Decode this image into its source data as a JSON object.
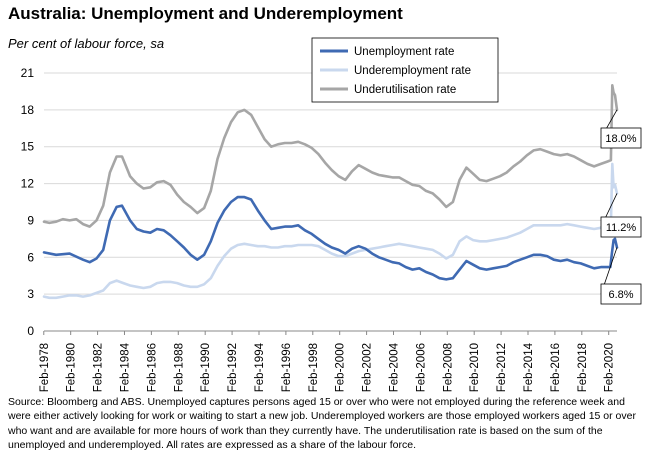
{
  "title": "Australia: Unemployment and Underemployment",
  "subtitle": "Per cent of labour force, sa",
  "source": "Source: Bloomberg and ABS. Unemployed captures persons aged 15 or over who were not employed during the reference week and were either actively looking for work or waiting to start a new job. Underemployed workers are those employed workers aged 15 or over who want and are available for more hours of work than they currently have. The underutilisation rate is based on the sum of the unemployed and underemployed. All rates are expressed as a share of the labour force.",
  "chart_data": {
    "type": "line",
    "x_ticks": [
      "Feb-1978",
      "Feb-1980",
      "Feb-1982",
      "Feb-1984",
      "Feb-1986",
      "Feb-1988",
      "Feb-1990",
      "Feb-1992",
      "Feb-1994",
      "Feb-1996",
      "Feb-1998",
      "Feb-2000",
      "Feb-2002",
      "Feb-2004",
      "Feb-2006",
      "Feb-2008",
      "Feb-2010",
      "Feb-2012",
      "Feb-2014",
      "Feb-2016",
      "Feb-2018",
      "Feb-2020"
    ],
    "xlim": [
      1978.1,
      2020.7
    ],
    "ylim": [
      0,
      21
    ],
    "y_ticks": [
      0,
      3,
      6,
      9,
      12,
      15,
      18,
      21
    ],
    "grid": true,
    "legend_position": "top-center",
    "series": [
      {
        "name": "Unemployment rate",
        "color": "#3f6ab3",
        "end_label": "6.8%",
        "points": [
          [
            1978.1,
            6.4
          ],
          [
            1979,
            6.2
          ],
          [
            1980,
            6.3
          ],
          [
            1981,
            5.8
          ],
          [
            1981.5,
            5.6
          ],
          [
            1982,
            5.9
          ],
          [
            1982.5,
            6.6
          ],
          [
            1983,
            9.0
          ],
          [
            1983.5,
            10.1
          ],
          [
            1983.9,
            10.2
          ],
          [
            1984.5,
            9.0
          ],
          [
            1985,
            8.3
          ],
          [
            1985.5,
            8.1
          ],
          [
            1986,
            8.0
          ],
          [
            1986.5,
            8.3
          ],
          [
            1987,
            8.2
          ],
          [
            1987.5,
            7.8
          ],
          [
            1988,
            7.3
          ],
          [
            1988.5,
            6.8
          ],
          [
            1989,
            6.2
          ],
          [
            1989.5,
            5.8
          ],
          [
            1990,
            6.2
          ],
          [
            1990.5,
            7.3
          ],
          [
            1991,
            8.8
          ],
          [
            1991.5,
            9.8
          ],
          [
            1992,
            10.5
          ],
          [
            1992.5,
            10.9
          ],
          [
            1993,
            10.9
          ],
          [
            1993.5,
            10.7
          ],
          [
            1994,
            9.8
          ],
          [
            1994.5,
            9.0
          ],
          [
            1995,
            8.3
          ],
          [
            1995.5,
            8.4
          ],
          [
            1996,
            8.5
          ],
          [
            1996.5,
            8.5
          ],
          [
            1997,
            8.6
          ],
          [
            1997.5,
            8.2
          ],
          [
            1998,
            7.9
          ],
          [
            1998.5,
            7.5
          ],
          [
            1999,
            7.1
          ],
          [
            1999.5,
            6.8
          ],
          [
            2000,
            6.6
          ],
          [
            2000.5,
            6.3
          ],
          [
            2001,
            6.7
          ],
          [
            2001.5,
            6.9
          ],
          [
            2002,
            6.7
          ],
          [
            2002.5,
            6.3
          ],
          [
            2003,
            6.0
          ],
          [
            2003.5,
            5.8
          ],
          [
            2004,
            5.6
          ],
          [
            2004.5,
            5.5
          ],
          [
            2005,
            5.2
          ],
          [
            2005.5,
            5.0
          ],
          [
            2006,
            5.1
          ],
          [
            2006.5,
            4.8
          ],
          [
            2007,
            4.6
          ],
          [
            2007.5,
            4.3
          ],
          [
            2008,
            4.2
          ],
          [
            2008.5,
            4.3
          ],
          [
            2009,
            5.0
          ],
          [
            2009.5,
            5.7
          ],
          [
            2010,
            5.4
          ],
          [
            2010.5,
            5.1
          ],
          [
            2011,
            5.0
          ],
          [
            2011.5,
            5.1
          ],
          [
            2012,
            5.2
          ],
          [
            2012.5,
            5.3
          ],
          [
            2013,
            5.6
          ],
          [
            2013.5,
            5.8
          ],
          [
            2014,
            6.0
          ],
          [
            2014.5,
            6.2
          ],
          [
            2015,
            6.2
          ],
          [
            2015.5,
            6.1
          ],
          [
            2016,
            5.8
          ],
          [
            2016.5,
            5.7
          ],
          [
            2017,
            5.8
          ],
          [
            2017.5,
            5.6
          ],
          [
            2018,
            5.5
          ],
          [
            2018.5,
            5.3
          ],
          [
            2019,
            5.1
          ],
          [
            2019.5,
            5.2
          ],
          [
            2020,
            5.2
          ],
          [
            2020.2,
            5.2
          ],
          [
            2020.33,
            6.4
          ],
          [
            2020.45,
            7.4
          ],
          [
            2020.55,
            7.5
          ],
          [
            2020.7,
            6.8
          ]
        ]
      },
      {
        "name": "Underemployment rate",
        "color": "#c9d8ee",
        "end_label": "11.2%",
        "points": [
          [
            1978.1,
            2.8
          ],
          [
            1978.5,
            2.7
          ],
          [
            1979,
            2.7
          ],
          [
            1979.5,
            2.8
          ],
          [
            1980,
            2.9
          ],
          [
            1980.5,
            2.9
          ],
          [
            1981,
            2.8
          ],
          [
            1981.5,
            2.9
          ],
          [
            1982,
            3.1
          ],
          [
            1982.5,
            3.3
          ],
          [
            1983,
            3.9
          ],
          [
            1983.5,
            4.1
          ],
          [
            1984,
            3.9
          ],
          [
            1984.5,
            3.7
          ],
          [
            1985,
            3.6
          ],
          [
            1985.5,
            3.5
          ],
          [
            1986,
            3.6
          ],
          [
            1986.5,
            3.9
          ],
          [
            1987,
            4.0
          ],
          [
            1987.5,
            4.0
          ],
          [
            1988,
            3.9
          ],
          [
            1988.5,
            3.7
          ],
          [
            1989,
            3.6
          ],
          [
            1989.5,
            3.6
          ],
          [
            1990,
            3.8
          ],
          [
            1990.5,
            4.3
          ],
          [
            1991,
            5.3
          ],
          [
            1991.5,
            6.1
          ],
          [
            1992,
            6.7
          ],
          [
            1992.5,
            7.0
          ],
          [
            1993,
            7.1
          ],
          [
            1993.5,
            7.0
          ],
          [
            1994,
            6.9
          ],
          [
            1994.5,
            6.9
          ],
          [
            1995,
            6.8
          ],
          [
            1995.5,
            6.8
          ],
          [
            1996,
            6.9
          ],
          [
            1996.5,
            6.9
          ],
          [
            1997,
            7.0
          ],
          [
            1997.5,
            7.0
          ],
          [
            1998,
            7.0
          ],
          [
            1998.5,
            6.9
          ],
          [
            1999,
            6.6
          ],
          [
            1999.5,
            6.3
          ],
          [
            2000,
            6.1
          ],
          [
            2000.5,
            6.1
          ],
          [
            2001,
            6.3
          ],
          [
            2001.5,
            6.5
          ],
          [
            2002,
            6.6
          ],
          [
            2002.5,
            6.7
          ],
          [
            2003,
            6.8
          ],
          [
            2003.5,
            6.9
          ],
          [
            2004,
            7.0
          ],
          [
            2004.5,
            7.1
          ],
          [
            2005,
            7.0
          ],
          [
            2005.5,
            6.9
          ],
          [
            2006,
            6.8
          ],
          [
            2006.5,
            6.7
          ],
          [
            2007,
            6.6
          ],
          [
            2007.5,
            6.3
          ],
          [
            2008,
            5.9
          ],
          [
            2008.5,
            6.2
          ],
          [
            2009,
            7.3
          ],
          [
            2009.5,
            7.7
          ],
          [
            2010,
            7.4
          ],
          [
            2010.5,
            7.3
          ],
          [
            2011,
            7.3
          ],
          [
            2011.5,
            7.4
          ],
          [
            2012,
            7.5
          ],
          [
            2012.5,
            7.6
          ],
          [
            2013,
            7.8
          ],
          [
            2013.5,
            8.0
          ],
          [
            2014,
            8.3
          ],
          [
            2014.5,
            8.6
          ],
          [
            2015,
            8.6
          ],
          [
            2015.5,
            8.6
          ],
          [
            2016,
            8.6
          ],
          [
            2016.5,
            8.6
          ],
          [
            2017,
            8.7
          ],
          [
            2017.5,
            8.6
          ],
          [
            2018,
            8.5
          ],
          [
            2018.5,
            8.4
          ],
          [
            2019,
            8.3
          ],
          [
            2019.5,
            8.4
          ],
          [
            2020,
            8.6
          ],
          [
            2020.25,
            8.7
          ],
          [
            2020.35,
            13.6
          ],
          [
            2020.45,
            11.7
          ],
          [
            2020.55,
            11.9
          ],
          [
            2020.7,
            11.2
          ]
        ]
      },
      {
        "name": "Underutilisation rate",
        "color": "#a6a6a6",
        "end_label": "18.0%",
        "points": [
          [
            1978.1,
            8.9
          ],
          [
            1978.5,
            8.8
          ],
          [
            1979,
            8.9
          ],
          [
            1979.5,
            9.1
          ],
          [
            1980,
            9.0
          ],
          [
            1980.5,
            9.1
          ],
          [
            1981,
            8.7
          ],
          [
            1981.5,
            8.5
          ],
          [
            1982,
            9.0
          ],
          [
            1982.5,
            10.2
          ],
          [
            1983,
            12.9
          ],
          [
            1983.5,
            14.2
          ],
          [
            1983.9,
            14.2
          ],
          [
            1984.5,
            12.6
          ],
          [
            1985,
            12.0
          ],
          [
            1985.5,
            11.6
          ],
          [
            1986,
            11.7
          ],
          [
            1986.5,
            12.1
          ],
          [
            1987,
            12.2
          ],
          [
            1987.5,
            11.9
          ],
          [
            1988,
            11.1
          ],
          [
            1988.5,
            10.5
          ],
          [
            1989,
            10.1
          ],
          [
            1989.5,
            9.6
          ],
          [
            1990,
            10.0
          ],
          [
            1990.5,
            11.4
          ],
          [
            1991,
            14.0
          ],
          [
            1991.5,
            15.7
          ],
          [
            1992,
            17.0
          ],
          [
            1992.5,
            17.8
          ],
          [
            1993,
            18.0
          ],
          [
            1993.5,
            17.6
          ],
          [
            1994,
            16.6
          ],
          [
            1994.5,
            15.6
          ],
          [
            1995,
            15.0
          ],
          [
            1995.5,
            15.2
          ],
          [
            1996,
            15.3
          ],
          [
            1996.5,
            15.3
          ],
          [
            1997,
            15.4
          ],
          [
            1997.5,
            15.2
          ],
          [
            1998,
            14.9
          ],
          [
            1998.5,
            14.4
          ],
          [
            1999,
            13.7
          ],
          [
            1999.5,
            13.1
          ],
          [
            2000,
            12.6
          ],
          [
            2000.5,
            12.3
          ],
          [
            2001,
            13.0
          ],
          [
            2001.5,
            13.5
          ],
          [
            2002,
            13.2
          ],
          [
            2002.5,
            12.9
          ],
          [
            2003,
            12.7
          ],
          [
            2003.5,
            12.6
          ],
          [
            2004,
            12.5
          ],
          [
            2004.5,
            12.5
          ],
          [
            2005,
            12.2
          ],
          [
            2005.5,
            11.9
          ],
          [
            2006,
            11.8
          ],
          [
            2006.5,
            11.4
          ],
          [
            2007,
            11.2
          ],
          [
            2007.5,
            10.7
          ],
          [
            2008,
            10.1
          ],
          [
            2008.5,
            10.5
          ],
          [
            2009,
            12.3
          ],
          [
            2009.5,
            13.3
          ],
          [
            2010,
            12.8
          ],
          [
            2010.5,
            12.3
          ],
          [
            2011,
            12.2
          ],
          [
            2011.5,
            12.4
          ],
          [
            2012,
            12.6
          ],
          [
            2012.5,
            12.9
          ],
          [
            2013,
            13.4
          ],
          [
            2013.5,
            13.8
          ],
          [
            2014,
            14.3
          ],
          [
            2014.5,
            14.7
          ],
          [
            2015,
            14.8
          ],
          [
            2015.5,
            14.6
          ],
          [
            2016,
            14.4
          ],
          [
            2016.5,
            14.3
          ],
          [
            2017,
            14.4
          ],
          [
            2017.5,
            14.2
          ],
          [
            2018,
            13.9
          ],
          [
            2018.5,
            13.6
          ],
          [
            2019,
            13.4
          ],
          [
            2019.5,
            13.6
          ],
          [
            2020,
            13.8
          ],
          [
            2020.25,
            13.9
          ],
          [
            2020.35,
            20.0
          ],
          [
            2020.45,
            19.4
          ],
          [
            2020.55,
            19.2
          ],
          [
            2020.7,
            18.0
          ]
        ]
      }
    ]
  }
}
